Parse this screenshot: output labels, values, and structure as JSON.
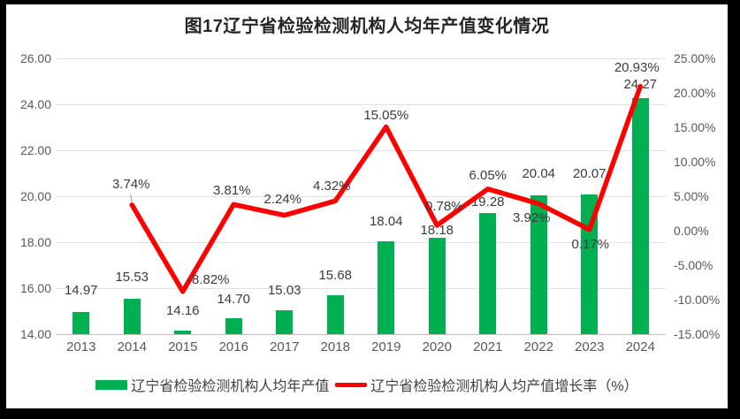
{
  "frame": {
    "border_color": "#000000",
    "panel_background": "#FFFFFF"
  },
  "colors": {
    "bar": "#00AF52",
    "line": "#FF0000",
    "grid": "#E2E2E2",
    "axis_line": "#BFBFBF",
    "axis_text": "#595959",
    "data_label_text": "#3B3B3B",
    "title_text": "#262626",
    "leader_line": "#A6A6A6"
  },
  "chart_data": {
    "type": "combo",
    "title": "图17辽宁省检验检测机构人均年产值变化情况",
    "categories": [
      "2013",
      "2014",
      "2015",
      "2016",
      "2017",
      "2018",
      "2019",
      "2020",
      "2021",
      "2022",
      "2023",
      "2024"
    ],
    "series": [
      {
        "name": "辽宁省检验检测机构人均年产值",
        "type": "bar",
        "axis": "left",
        "color": "#00AF52",
        "values": [
          14.97,
          15.53,
          14.16,
          14.7,
          15.03,
          15.68,
          18.04,
          18.18,
          19.28,
          20.04,
          20.07,
          24.27
        ],
        "data_labels": [
          "14.97",
          "15.53",
          "14.16",
          "14.70",
          "15.03",
          "15.68",
          "18.04",
          "18.18",
          "19.28",
          "20.04",
          "20.07",
          "24.27"
        ]
      },
      {
        "name": "辽宁省检验检测机构人均产值增长率（%）",
        "type": "line",
        "axis": "right",
        "color": "#FF0000",
        "values": [
          null,
          3.74,
          -8.82,
          3.81,
          2.24,
          4.32,
          15.05,
          0.78,
          6.05,
          3.92,
          0.17,
          20.93
        ],
        "data_labels": [
          "",
          "3.74%",
          "-8.82%",
          "3.81%",
          "2.24%",
          "4.32%",
          "15.05%",
          "0.78%",
          "6.05%",
          "3.92%",
          "0.17%",
          "20.93%"
        ]
      }
    ],
    "left_axis": {
      "min": 14,
      "max": 26,
      "step": 2,
      "tick_labels": [
        "26.00",
        "24.00",
        "22.00",
        "20.00",
        "18.00",
        "16.00",
        "14.00"
      ]
    },
    "right_axis": {
      "min": -15,
      "max": 25,
      "step": 5,
      "tick_labels": [
        "25.00%",
        "20.00%",
        "15.00%",
        "10.00%",
        "5.00%",
        "0.00%",
        "-5.00%",
        "-10.00%",
        "-15.00%"
      ]
    },
    "gridlines": "horizontal",
    "legend_position": "bottom"
  }
}
